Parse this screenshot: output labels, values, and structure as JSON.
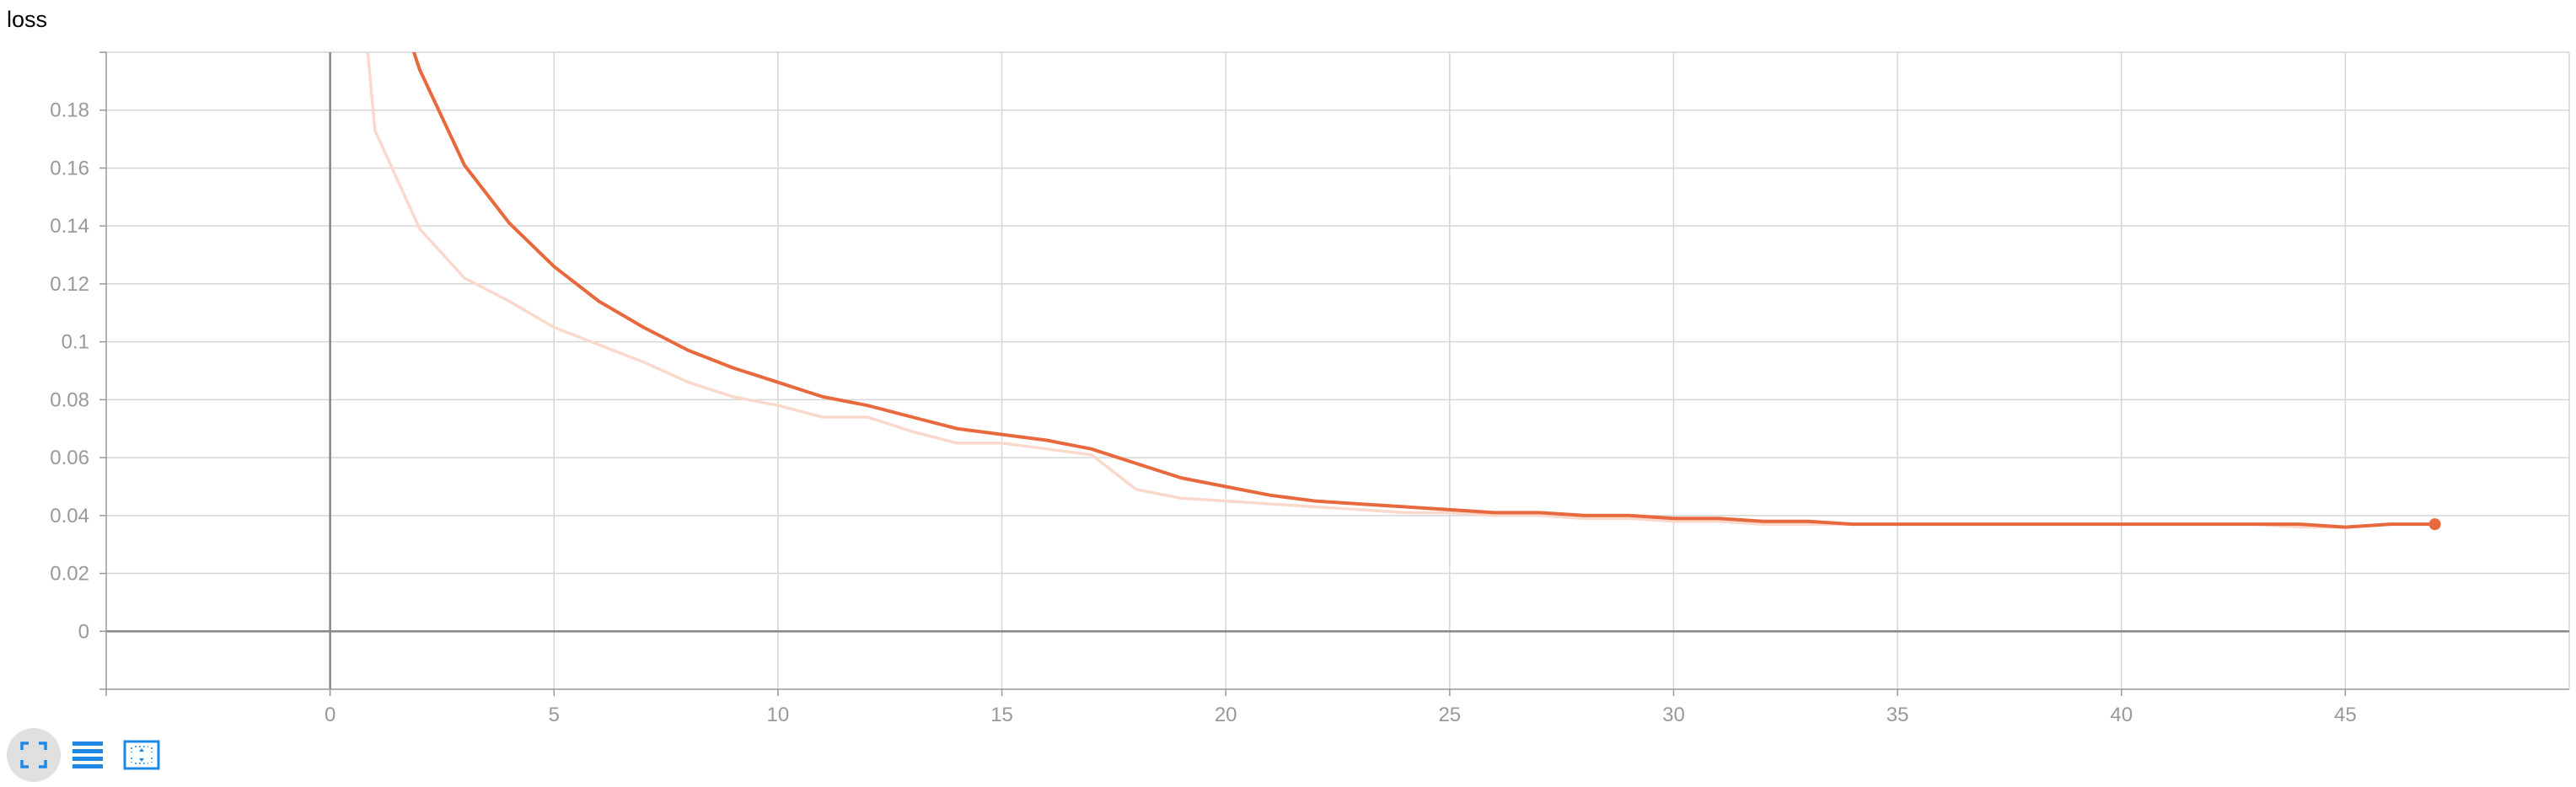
{
  "title": "loss",
  "colors": {
    "series": "#e8693d",
    "series_raw": "#fbd8cc",
    "grid": "#d6d6d6",
    "axis": "#999999",
    "zero_axis": "#888888",
    "tick_text": "#999999",
    "toolbar_icon": "#1e88e5",
    "toolbar_active_bg": "#e0e0e0"
  },
  "toolbar": [
    {
      "icon": "fit-to-data-icon",
      "active": true
    },
    {
      "icon": "toggle-log-scale-icon",
      "active": false
    },
    {
      "icon": "reset-zoom-icon",
      "active": false
    }
  ],
  "chart_data": {
    "type": "line",
    "title": "loss",
    "xlabel": "",
    "ylabel": "",
    "xlim": [
      -5,
      50
    ],
    "ylim": [
      -0.02,
      0.2
    ],
    "grid": true,
    "x_ticks": [
      0,
      5,
      10,
      15,
      20,
      25,
      30,
      35,
      40,
      45
    ],
    "x_tick_labels": [
      "0",
      "5",
      "10",
      "15",
      "20",
      "25",
      "30",
      "35",
      "40",
      "45"
    ],
    "y_ticks": [
      0,
      0.02,
      0.04,
      0.06,
      0.08,
      0.1,
      0.12,
      0.14,
      0.16,
      0.18
    ],
    "y_tick_labels": [
      "0",
      "0.02",
      "0.04",
      "0.06",
      "0.08",
      "0.1",
      "0.12",
      "0.14",
      "0.16",
      "0.18"
    ],
    "series": [
      {
        "role": "raw",
        "x": [
          0.84,
          1,
          2,
          3,
          4,
          5,
          6,
          7,
          8,
          9,
          10,
          11,
          12,
          13,
          14,
          15,
          16,
          17,
          18,
          19,
          20,
          21,
          22,
          23,
          24,
          25,
          26,
          27,
          28,
          29,
          30,
          31,
          32,
          33,
          34,
          35,
          36,
          37,
          38,
          39,
          40,
          41,
          42,
          43,
          44,
          45,
          46,
          47
        ],
        "y": [
          0.2,
          0.173,
          0.139,
          0.122,
          0.114,
          0.105,
          0.099,
          0.093,
          0.086,
          0.081,
          0.078,
          0.074,
          0.074,
          0.069,
          0.065,
          0.065,
          0.063,
          0.061,
          0.049,
          0.046,
          0.045,
          0.044,
          0.043,
          0.042,
          0.041,
          0.041,
          0.04,
          0.04,
          0.039,
          0.039,
          0.038,
          0.038,
          0.037,
          0.037,
          0.037,
          0.037,
          0.037,
          0.037,
          0.037,
          0.037,
          0.037,
          0.037,
          0.037,
          0.037,
          0.036,
          0.036,
          0.037,
          0.037
        ]
      },
      {
        "role": "smoothed",
        "x": [
          1.87,
          2,
          3,
          4,
          5,
          6,
          7,
          8,
          9,
          10,
          11,
          12,
          13,
          14,
          15,
          16,
          17,
          18,
          19,
          20,
          21,
          22,
          23,
          24,
          25,
          26,
          27,
          28,
          29,
          30,
          31,
          32,
          33,
          34,
          35,
          36,
          37,
          38,
          39,
          40,
          41,
          42,
          43,
          44,
          45,
          46,
          47
        ],
        "y": [
          0.2,
          0.194,
          0.161,
          0.141,
          0.126,
          0.114,
          0.105,
          0.097,
          0.091,
          0.086,
          0.081,
          0.078,
          0.074,
          0.07,
          0.068,
          0.066,
          0.063,
          0.058,
          0.053,
          0.05,
          0.047,
          0.045,
          0.044,
          0.043,
          0.042,
          0.041,
          0.041,
          0.04,
          0.04,
          0.039,
          0.039,
          0.038,
          0.038,
          0.037,
          0.037,
          0.037,
          0.037,
          0.037,
          0.037,
          0.037,
          0.037,
          0.037,
          0.037,
          0.037,
          0.036,
          0.037,
          0.037
        ]
      }
    ]
  }
}
